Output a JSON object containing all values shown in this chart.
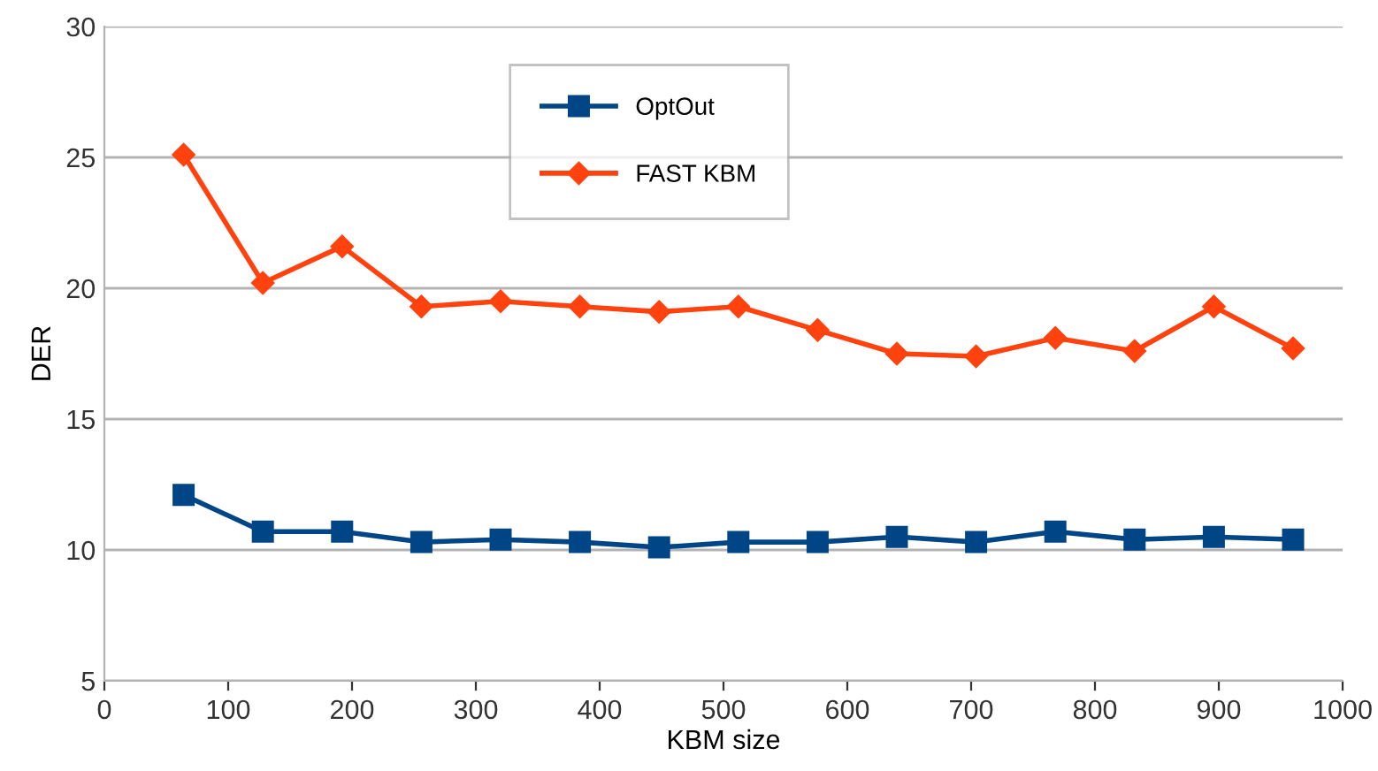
{
  "chart_data": {
    "type": "line",
    "xlabel": "KBM size",
    "ylabel": "DER",
    "x": [
      64,
      128,
      192,
      256,
      320,
      384,
      448,
      512,
      576,
      640,
      704,
      768,
      832,
      896,
      960
    ],
    "series": [
      {
        "name": "OptOut",
        "color": "#004586",
        "marker": "square",
        "values": [
          12.1,
          10.7,
          10.7,
          10.3,
          10.4,
          10.3,
          10.1,
          10.3,
          10.3,
          10.5,
          10.3,
          10.7,
          10.4,
          10.5,
          10.4
        ]
      },
      {
        "name": "FAST KBM",
        "color": "#ff420e",
        "marker": "diamond",
        "values": [
          25.1,
          20.2,
          21.6,
          19.3,
          19.5,
          19.3,
          19.1,
          19.3,
          18.4,
          17.5,
          17.4,
          18.1,
          17.6,
          19.3,
          17.7
        ]
      }
    ],
    "xlim": [
      0,
      1000
    ],
    "xticks": [
      0,
      100,
      200,
      300,
      400,
      500,
      600,
      700,
      800,
      900,
      1000
    ],
    "ylim": [
      5,
      30
    ],
    "yticks": [
      5,
      10,
      15,
      20,
      25,
      30
    ],
    "grid": "y",
    "legend": "top",
    "line_style": "solid"
  }
}
